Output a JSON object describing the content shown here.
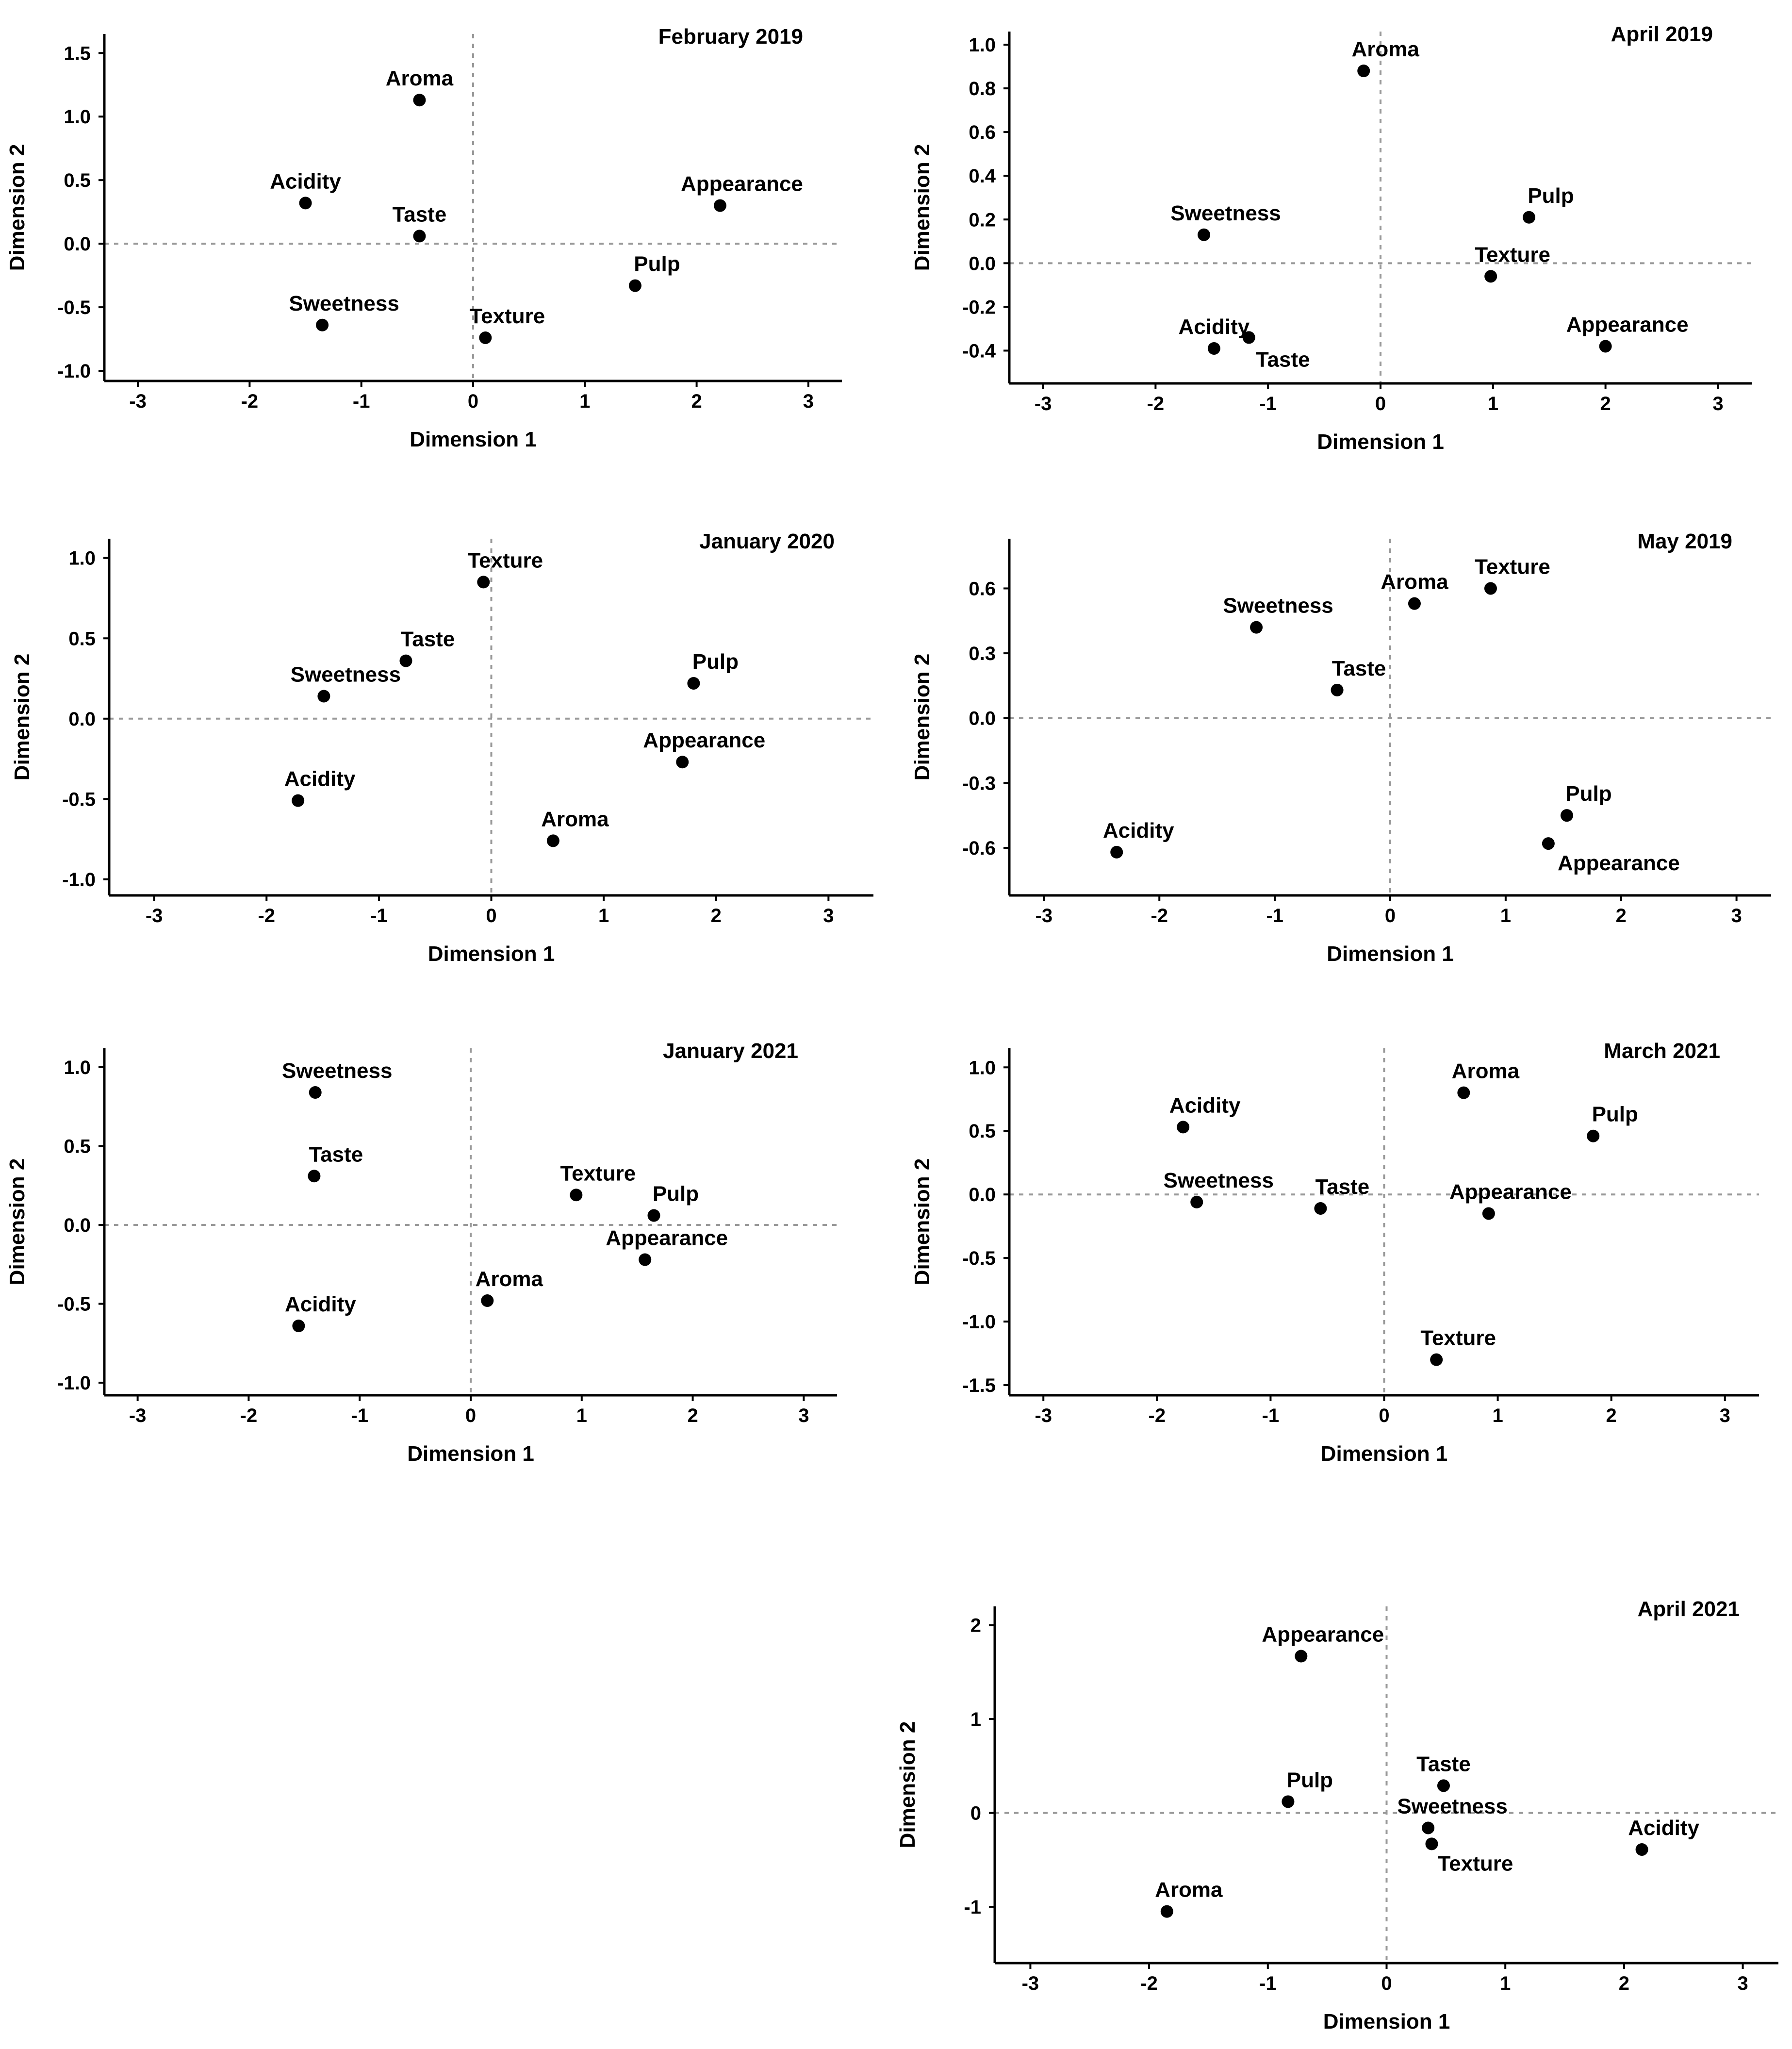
{
  "chart_data": [
    {
      "type": "scatter",
      "title": "February 2019",
      "xlabel": "Dimension 1",
      "ylabel": "Dimension 2",
      "xlim": [
        -3.3,
        3.3
      ],
      "ylim": [
        -1.08,
        1.65
      ],
      "xticks": [
        "-3",
        "-2",
        "-1",
        "0",
        "1",
        "2",
        "3"
      ],
      "xtick_values": [
        -3,
        -2,
        -1,
        0,
        1,
        2,
        3
      ],
      "yticks": [
        "-1.0",
        "-0.5",
        "0.0",
        "0.5",
        "1.0",
        "1.5"
      ],
      "ytick_values": [
        -1.0,
        -0.5,
        0.0,
        0.5,
        1.0,
        1.5
      ],
      "points": [
        {
          "label": "Aroma",
          "x": -0.48,
          "y": 1.13
        },
        {
          "label": "Acidity",
          "x": -1.5,
          "y": 0.32
        },
        {
          "label": "Taste",
          "x": -0.48,
          "y": 0.06
        },
        {
          "label": "Appearance",
          "x": 2.21,
          "y": 0.3
        },
        {
          "label": "Pulp",
          "x": 1.45,
          "y": -0.33
        },
        {
          "label": "Sweetness",
          "x": -1.35,
          "y": -0.64
        },
        {
          "label": "Texture",
          "x": 0.11,
          "y": -0.74
        }
      ]
    },
    {
      "type": "scatter",
      "title": "April 2019",
      "xlabel": "Dimension 1",
      "ylabel": "Dimension 2",
      "xlim": [
        -3.3,
        3.3
      ],
      "ylim": [
        -0.55,
        1.06
      ],
      "xticks": [
        "-3",
        "-2",
        "-1",
        "0",
        "1",
        "2",
        "3"
      ],
      "xtick_values": [
        -3,
        -2,
        -1,
        0,
        1,
        2,
        3
      ],
      "yticks": [
        "-0.4",
        "-0.2",
        "0.0",
        "0.2",
        "0.4",
        "0.6",
        "0.8",
        "1.0"
      ],
      "ytick_values": [
        -0.4,
        -0.2,
        0.0,
        0.2,
        0.4,
        0.6,
        0.8,
        1.0
      ],
      "points": [
        {
          "label": "Aroma",
          "x": -0.15,
          "y": 0.88
        },
        {
          "label": "Sweetness",
          "x": -1.57,
          "y": 0.13
        },
        {
          "label": "Pulp",
          "x": 1.32,
          "y": 0.21
        },
        {
          "label": "Texture",
          "x": 0.98,
          "y": -0.06
        },
        {
          "label": "Acidity",
          "x": -1.48,
          "y": -0.39
        },
        {
          "label": "Taste",
          "x": -1.17,
          "y": -0.34
        },
        {
          "label": "Appearance",
          "x": 2.0,
          "y": -0.38
        }
      ]
    },
    {
      "type": "scatter",
      "title": "January 2020",
      "xlabel": "Dimension 1",
      "ylabel": "Dimension 2",
      "xlim": [
        -3.4,
        3.4
      ],
      "ylim": [
        -1.1,
        1.12
      ],
      "xticks": [
        "-3",
        "-2",
        "-1",
        "0",
        "1",
        "2",
        "3"
      ],
      "xtick_values": [
        -3,
        -2,
        -1,
        0,
        1,
        2,
        3
      ],
      "yticks": [
        "-1.0",
        "-0.5",
        "0.0",
        "0.5",
        "1.0"
      ],
      "ytick_values": [
        -1.0,
        -0.5,
        0.0,
        0.5,
        1.0
      ],
      "points": [
        {
          "label": "Texture",
          "x": -0.07,
          "y": 0.85
        },
        {
          "label": "Taste",
          "x": -0.76,
          "y": 0.36
        },
        {
          "label": "Sweetness",
          "x": -1.49,
          "y": 0.14
        },
        {
          "label": "Pulp",
          "x": 1.8,
          "y": 0.22
        },
        {
          "label": "Appearance",
          "x": 1.7,
          "y": -0.27
        },
        {
          "label": "Acidity",
          "x": -1.72,
          "y": -0.51
        },
        {
          "label": "Aroma",
          "x": 0.55,
          "y": -0.76
        }
      ]
    },
    {
      "type": "scatter",
      "title": "May 2019",
      "xlabel": "Dimension 1",
      "ylabel": "Dimension 2",
      "xlim": [
        -3.3,
        3.3
      ],
      "ylim": [
        -0.82,
        0.83
      ],
      "xticks": [
        "-3",
        "-2",
        "-1",
        "0",
        "1",
        "2",
        "3"
      ],
      "xtick_values": [
        -3,
        -2,
        -1,
        0,
        1,
        2,
        3
      ],
      "yticks": [
        "-0.6",
        "-0.3",
        "0.0",
        "0.3",
        "0.6"
      ],
      "ytick_values": [
        -0.6,
        -0.3,
        0.0,
        0.3,
        0.6
      ],
      "points": [
        {
          "label": "Texture",
          "x": 0.87,
          "y": 0.6
        },
        {
          "label": "Aroma",
          "x": 0.21,
          "y": 0.53
        },
        {
          "label": "Sweetness",
          "x": -1.16,
          "y": 0.42
        },
        {
          "label": "Taste",
          "x": -0.46,
          "y": 0.13
        },
        {
          "label": "Pulp",
          "x": 1.53,
          "y": -0.45
        },
        {
          "label": "Appearance",
          "x": 1.37,
          "y": -0.58
        },
        {
          "label": "Acidity",
          "x": -2.37,
          "y": -0.62
        }
      ]
    },
    {
      "type": "scatter",
      "title": "January 2021",
      "xlabel": "Dimension 1",
      "ylabel": "Dimension 2",
      "xlim": [
        -3.3,
        3.3
      ],
      "ylim": [
        -1.08,
        1.12
      ],
      "xticks": [
        "-3",
        "-2",
        "-1",
        "0",
        "1",
        "2",
        "3"
      ],
      "xtick_values": [
        -3,
        -2,
        -1,
        0,
        1,
        2,
        3
      ],
      "yticks": [
        "-1.0",
        "-0.5",
        "0.0",
        "0.5",
        "1.0"
      ],
      "ytick_values": [
        -1.0,
        -0.5,
        0.0,
        0.5,
        1.0
      ],
      "points": [
        {
          "label": "Sweetness",
          "x": -1.4,
          "y": 0.84
        },
        {
          "label": "Taste",
          "x": -1.41,
          "y": 0.31
        },
        {
          "label": "Texture",
          "x": 0.95,
          "y": 0.19
        },
        {
          "label": "Pulp",
          "x": 1.65,
          "y": 0.06
        },
        {
          "label": "Appearance",
          "x": 1.57,
          "y": -0.22
        },
        {
          "label": "Aroma",
          "x": 0.15,
          "y": -0.48
        },
        {
          "label": "Acidity",
          "x": -1.55,
          "y": -0.64
        }
      ]
    },
    {
      "type": "scatter",
      "title": "March 2021",
      "xlabel": "Dimension 1",
      "ylabel": "Dimension 2",
      "xlim": [
        -3.3,
        3.3
      ],
      "ylim": [
        -1.58,
        1.15
      ],
      "xticks": [
        "-3",
        "-2",
        "-1",
        "0",
        "1",
        "2",
        "3"
      ],
      "xtick_values": [
        -3,
        -2,
        -1,
        0,
        1,
        2,
        3
      ],
      "yticks": [
        "-1.5",
        "-1.0",
        "-0.5",
        "0.0",
        "0.5",
        "1.0"
      ],
      "ytick_values": [
        -1.5,
        -1.0,
        -0.5,
        0.0,
        0.5,
        1.0
      ],
      "points": [
        {
          "label": "Aroma",
          "x": 0.7,
          "y": 0.8
        },
        {
          "label": "Acidity",
          "x": -1.77,
          "y": 0.53
        },
        {
          "label": "Pulp",
          "x": 1.84,
          "y": 0.46
        },
        {
          "label": "Sweetness",
          "x": -1.65,
          "y": -0.06
        },
        {
          "label": "Taste",
          "x": -0.56,
          "y": -0.11
        },
        {
          "label": "Appearance",
          "x": 0.92,
          "y": -0.15
        },
        {
          "label": "Texture",
          "x": 0.46,
          "y": -1.3
        }
      ]
    },
    {
      "type": "scatter",
      "title": "April 2021",
      "xlabel": "Dimension 1",
      "ylabel": "Dimension 2",
      "xlim": [
        -3.3,
        3.3
      ],
      "ylim": [
        -1.6,
        2.2
      ],
      "xticks": [
        "-3",
        "-2",
        "-1",
        "0",
        "1",
        "2",
        "3"
      ],
      "xtick_values": [
        -3,
        -2,
        -1,
        0,
        1,
        2,
        3
      ],
      "yticks": [
        "-1",
        "0",
        "1",
        "2"
      ],
      "ytick_values": [
        -1,
        0,
        1,
        2
      ],
      "points": [
        {
          "label": "Appearance",
          "x": -0.72,
          "y": 1.67
        },
        {
          "label": "Pulp",
          "x": -0.83,
          "y": 0.12
        },
        {
          "label": "Taste",
          "x": 0.48,
          "y": 0.29
        },
        {
          "label": "Sweetness",
          "x": 0.35,
          "y": -0.16
        },
        {
          "label": "Texture",
          "x": 0.38,
          "y": -0.33
        },
        {
          "label": "Acidity",
          "x": 2.15,
          "y": -0.39
        },
        {
          "label": "Aroma",
          "x": -1.85,
          "y": -1.05
        }
      ]
    }
  ]
}
